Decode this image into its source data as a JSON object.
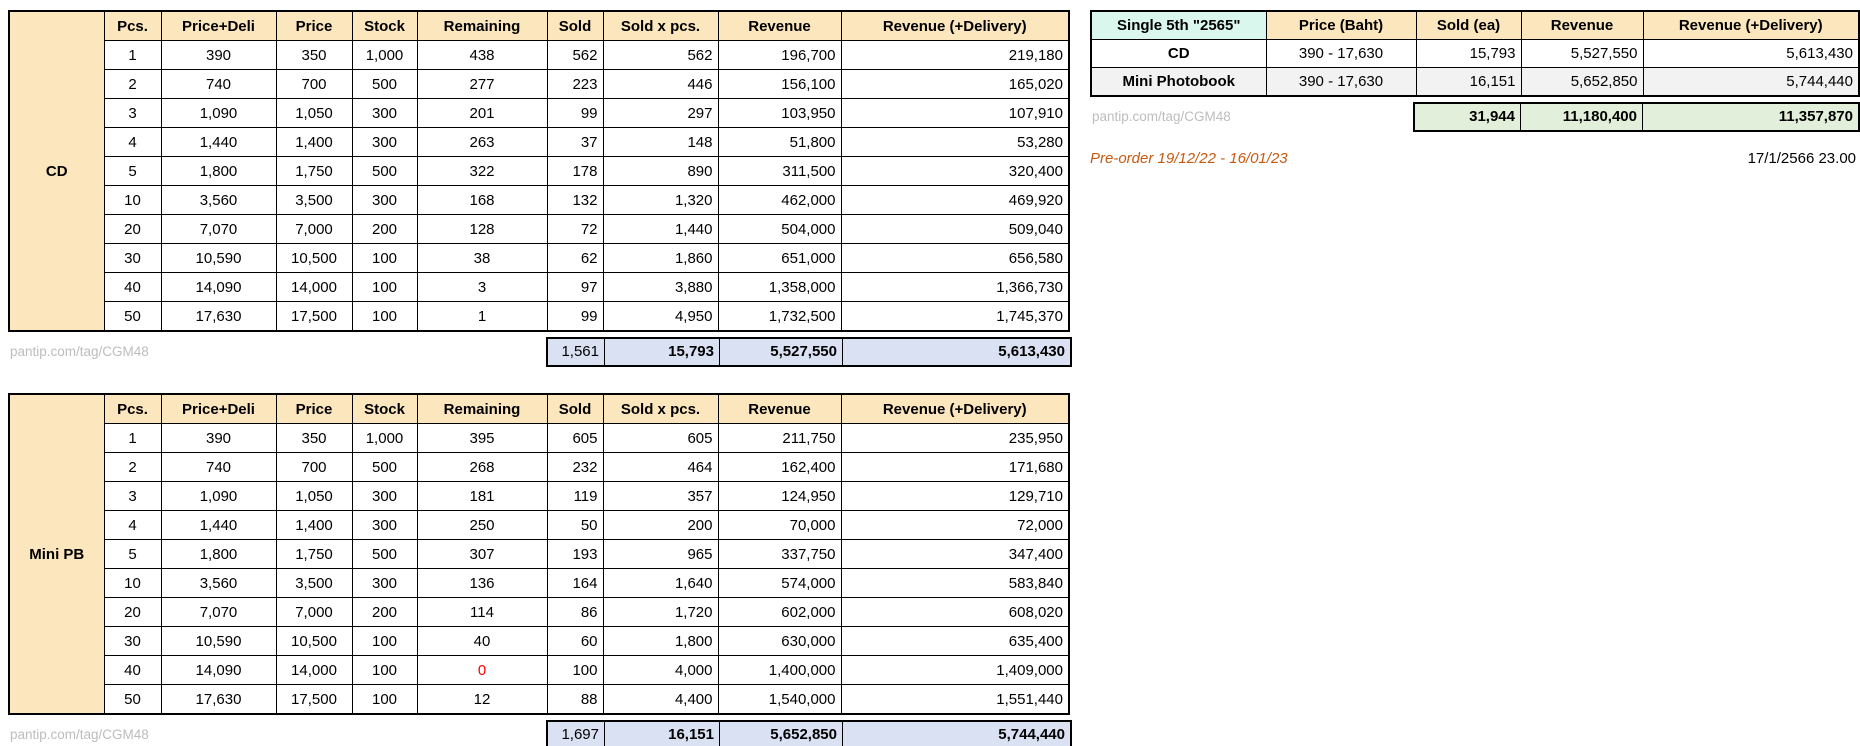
{
  "chart_data": [
    {
      "type": "table",
      "name": "CD",
      "columns": [
        "Pcs.",
        "Price+Deli",
        "Price",
        "Stock",
        "Remaining",
        "Sold",
        "Sold x pcs.",
        "Revenue",
        "Revenue (+Delivery)"
      ],
      "rows": [
        [
          "1",
          "390",
          "350",
          "1,000",
          "438",
          "562",
          "562",
          "196,700",
          "219,180"
        ],
        [
          "2",
          "740",
          "700",
          "500",
          "277",
          "223",
          "446",
          "156,100",
          "165,020"
        ],
        [
          "3",
          "1,090",
          "1,050",
          "300",
          "201",
          "99",
          "297",
          "103,950",
          "107,910"
        ],
        [
          "4",
          "1,440",
          "1,400",
          "300",
          "263",
          "37",
          "148",
          "51,800",
          "53,280"
        ],
        [
          "5",
          "1,800",
          "1,750",
          "500",
          "322",
          "178",
          "890",
          "311,500",
          "320,400"
        ],
        [
          "10",
          "3,560",
          "3,500",
          "300",
          "168",
          "132",
          "1,320",
          "462,000",
          "469,920"
        ],
        [
          "20",
          "7,070",
          "7,000",
          "200",
          "128",
          "72",
          "1,440",
          "504,000",
          "509,040"
        ],
        [
          "30",
          "10,590",
          "10,500",
          "100",
          "38",
          "62",
          "1,860",
          "651,000",
          "656,580"
        ],
        [
          "40",
          "14,090",
          "14,000",
          "100",
          "3",
          "97",
          "3,880",
          "1,358,000",
          "1,366,730"
        ],
        [
          "50",
          "17,630",
          "17,500",
          "100",
          "1",
          "99",
          "4,950",
          "1,732,500",
          "1,745,370"
        ]
      ],
      "totals": {
        "sold": "1,561",
        "sold_x_pcs": "15,793",
        "revenue": "5,527,550",
        "revenue_plus_delivery": "5,613,430"
      },
      "watermark": "pantip.com/tag/CGM48"
    },
    {
      "type": "table",
      "name": "Mini PB",
      "columns": [
        "Pcs.",
        "Price+Deli",
        "Price",
        "Stock",
        "Remaining",
        "Sold",
        "Sold x pcs.",
        "Revenue",
        "Revenue (+Delivery)"
      ],
      "rows": [
        [
          "1",
          "390",
          "350",
          "1,000",
          "395",
          "605",
          "605",
          "211,750",
          "235,950"
        ],
        [
          "2",
          "740",
          "700",
          "500",
          "268",
          "232",
          "464",
          "162,400",
          "171,680"
        ],
        [
          "3",
          "1,090",
          "1,050",
          "300",
          "181",
          "119",
          "357",
          "124,950",
          "129,710"
        ],
        [
          "4",
          "1,440",
          "1,400",
          "300",
          "250",
          "50",
          "200",
          "70,000",
          "72,000"
        ],
        [
          "5",
          "1,800",
          "1,750",
          "500",
          "307",
          "193",
          "965",
          "337,750",
          "347,400"
        ],
        [
          "10",
          "3,560",
          "3,500",
          "300",
          "136",
          "164",
          "1,640",
          "574,000",
          "583,840"
        ],
        [
          "20",
          "7,070",
          "7,000",
          "200",
          "114",
          "86",
          "1,720",
          "602,000",
          "608,020"
        ],
        [
          "30",
          "10,590",
          "10,500",
          "100",
          "40",
          "60",
          "1,800",
          "630,000",
          "635,400"
        ],
        [
          "40",
          "14,090",
          "14,000",
          "100",
          "0",
          "100",
          "4,000",
          "1,400,000",
          "1,409,000"
        ],
        [
          "50",
          "17,630",
          "17,500",
          "100",
          "12",
          "88",
          "4,400",
          "1,540,000",
          "1,551,440"
        ]
      ],
      "totals": {
        "sold": "1,697",
        "sold_x_pcs": "16,151",
        "revenue": "5,652,850",
        "revenue_plus_delivery": "5,744,440"
      },
      "watermark": "pantip.com/tag/CGM48"
    },
    {
      "type": "table",
      "name": "Single 5th \"2565\"",
      "columns": [
        "Single 5th \"2565\"",
        "Price (Baht)",
        "Sold (ea)",
        "Revenue",
        "Revenue (+Delivery)"
      ],
      "rows": [
        [
          "CD",
          "390 - 17,630",
          "15,793",
          "5,527,550",
          "5,613,430"
        ],
        [
          "Mini Photobook",
          "390 - 17,630",
          "16,151",
          "5,652,850",
          "5,744,440"
        ]
      ],
      "totals": {
        "sold_ea": "31,944",
        "revenue": "11,180,400",
        "revenue_plus_delivery": "11,357,870"
      },
      "watermark": "pantip.com/tag/CGM48"
    }
  ],
  "highlight": {
    "table": "Mini PB",
    "pcs": "40",
    "column": "Remaining",
    "value": "0",
    "color": "#FF0000"
  },
  "annotations": {
    "preorder": "Pre-order 19/12/22 - 16/01/23",
    "timestamp": "17/1/2566 23.00"
  },
  "colors": {
    "header_fill": "#FBE6BD",
    "label_fill": "#D7F5E6",
    "summary_title_fill": "#DAF7EE",
    "totals_fill_blue": "#D9E1F2",
    "totals_fill_green": "#E2EFDA",
    "alt_row_gray": "#F2F2F2",
    "negative_red": "#FF0000",
    "preorder_orange": "#C55A11",
    "watermark_gray": "#BDBDBD",
    "border": "#000000"
  }
}
